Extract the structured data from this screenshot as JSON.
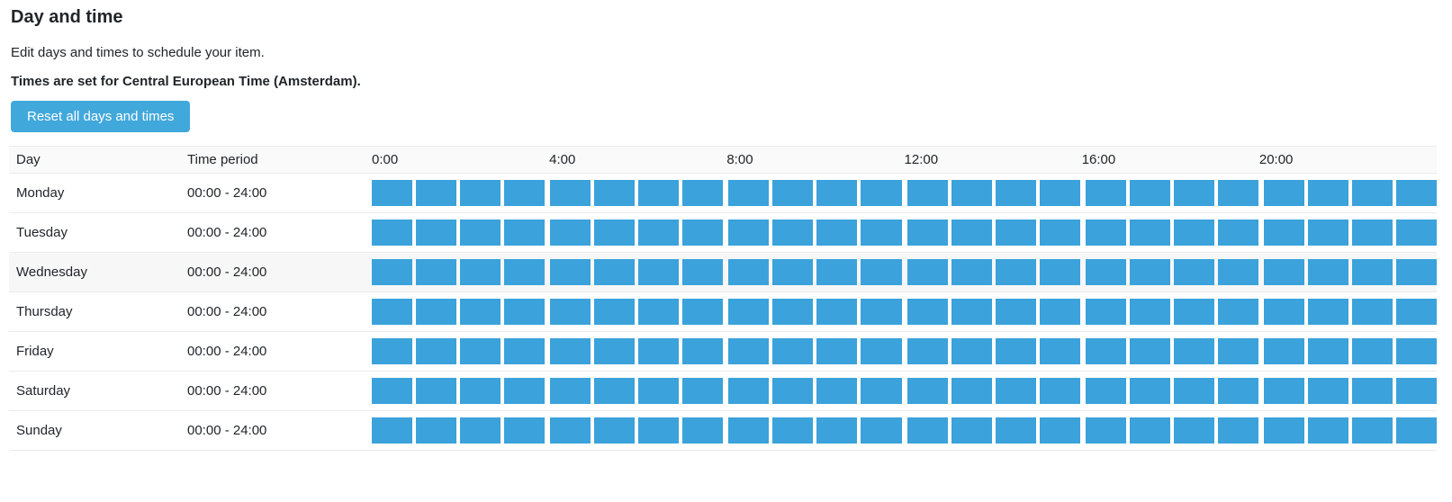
{
  "header": {
    "title": "Day and time",
    "description": "Edit days and times to schedule your item.",
    "timezone_note": "Times are set for Central European Time (Amsterdam).",
    "reset_button_label": "Reset all days and times"
  },
  "table": {
    "columns": {
      "day": "Day",
      "time_period": "Time period"
    },
    "time_labels": [
      "0:00",
      "4:00",
      "8:00",
      "12:00",
      "16:00",
      "20:00"
    ],
    "slots_per_group": 4,
    "hours_total": 24,
    "rows": [
      {
        "day": "Monday",
        "period": "00:00 - 24:00",
        "highlighted": false
      },
      {
        "day": "Tuesday",
        "period": "00:00 - 24:00",
        "highlighted": false
      },
      {
        "day": "Wednesday",
        "period": "00:00 - 24:00",
        "highlighted": true
      },
      {
        "day": "Thursday",
        "period": "00:00 - 24:00",
        "highlighted": false
      },
      {
        "day": "Friday",
        "period": "00:00 - 24:00",
        "highlighted": false
      },
      {
        "day": "Saturday",
        "period": "00:00 - 24:00",
        "highlighted": false
      },
      {
        "day": "Sunday",
        "period": "00:00 - 24:00",
        "highlighted": false
      }
    ]
  },
  "colors": {
    "block": "#3BA2DB",
    "button": "#41A8DC",
    "text": "#212529",
    "header_bg": "#FAFAFA",
    "row_border": "#EBEBEB",
    "row_highlight": "#F7F7F7"
  }
}
